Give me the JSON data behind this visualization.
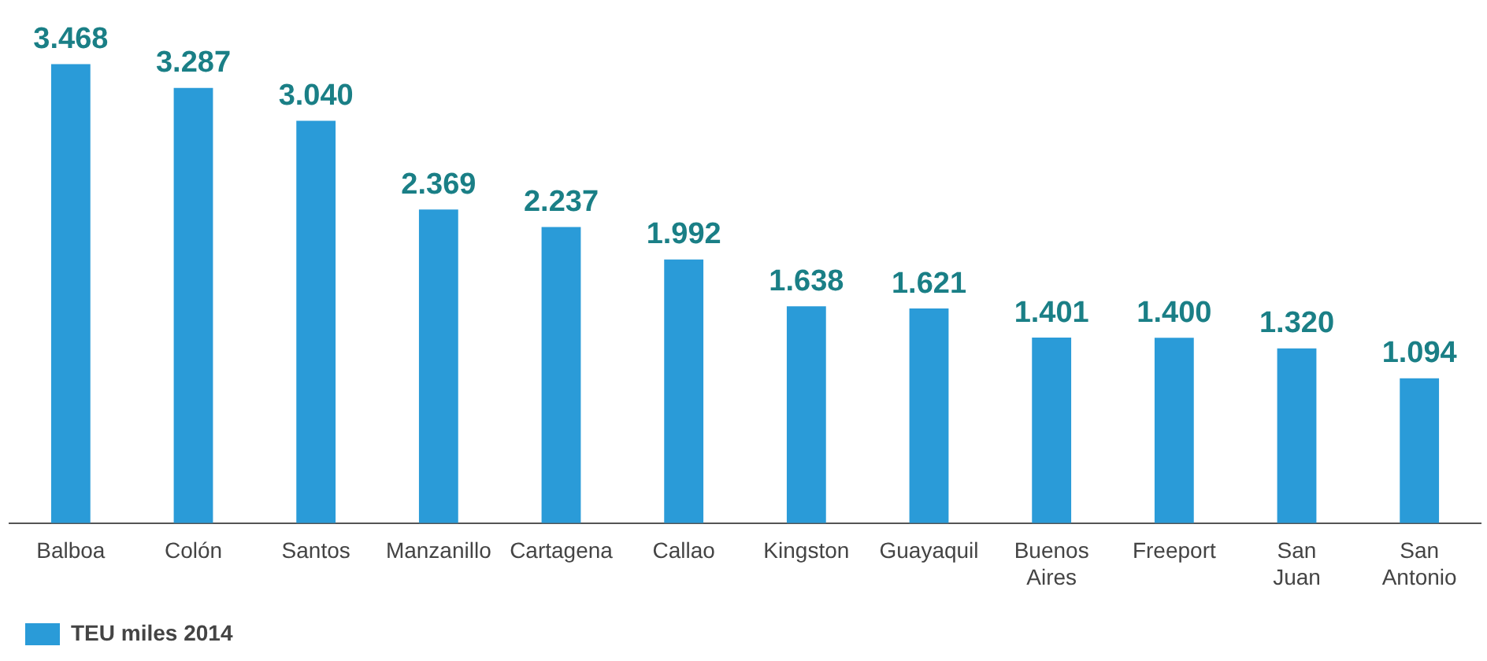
{
  "chart_data": {
    "type": "bar",
    "categories": [
      "Balboa",
      "Colón",
      "Santos",
      "Manzanillo",
      "Cartagena",
      "Callao",
      "Kingston",
      "Guayaquil",
      "Buenos Aires",
      "Freeport",
      "San Juan",
      "San Antonio"
    ],
    "series": [
      {
        "name": "TEU miles 2014",
        "color": "#2a9bd8",
        "values": [
          3468,
          3287,
          3040,
          2369,
          2237,
          1992,
          1638,
          1621,
          1401,
          1400,
          1320,
          1094
        ],
        "value_labels": [
          "3.468",
          "3.287",
          "3.040",
          "2.369",
          "2.237",
          "1.992",
          "1.638",
          "1.621",
          "1.401",
          "1.400",
          "1.320",
          "1.094"
        ]
      }
    ],
    "tick_labels": "x",
    "grid": false,
    "legend": "bottom left"
  }
}
